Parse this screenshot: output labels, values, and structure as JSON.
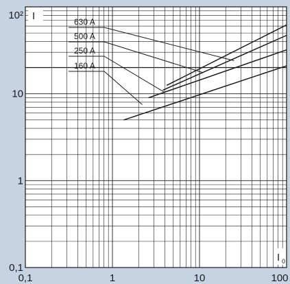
{
  "colors": {
    "background": "#c5d3e2",
    "plot_area": "#ffffff",
    "grid": "#1a1a1a",
    "series": "#1a1a1a"
  },
  "chart_data": {
    "type": "line",
    "x_scale": "log",
    "y_scale": "log",
    "xlim": [
      0.1,
      100
    ],
    "ylim": [
      0.1,
      100
    ],
    "xticks": [
      "0,1",
      "1",
      "10",
      "100"
    ],
    "yticks": [
      "0,1",
      "1",
      "10",
      "10²"
    ],
    "xlabel": "I",
    "xlabel_subscript": "0",
    "ylabel": "I",
    "grid": true,
    "reference_lines": [
      {
        "axis": "y",
        "value": 20
      }
    ],
    "series": [
      {
        "name": "630 A",
        "x": [
          4.2,
          100
        ],
        "y": [
          12.5,
          62
        ]
      },
      {
        "name": "500 A",
        "x": [
          3.8,
          100
        ],
        "y": [
          11.0,
          47
        ]
      },
      {
        "name": "250 A",
        "x": [
          2.6,
          100
        ],
        "y": [
          9.0,
          32
        ]
      },
      {
        "name": "160 A",
        "x": [
          1.35,
          100
        ],
        "y": [
          5.0,
          21
        ]
      }
    ],
    "legend_labels": [
      {
        "series": "630 A",
        "target_x": 25,
        "target_y": 24
      },
      {
        "series": "500 A",
        "target_x": 11,
        "target_y": 17.5
      },
      {
        "series": "250 A",
        "target_x": 3.9,
        "target_y": 10.5
      },
      {
        "series": "160 A",
        "target_x": 2.2,
        "target_y": 7.5
      }
    ]
  }
}
